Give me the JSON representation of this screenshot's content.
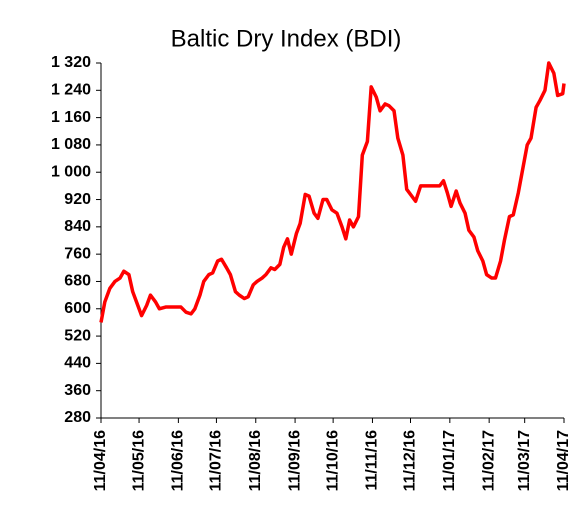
{
  "chart_data": {
    "type": "line",
    "title": "Baltic Dry Index (BDI)",
    "x": [
      "2016-04-11",
      "2016-04-14",
      "2016-04-18",
      "2016-04-22",
      "2016-04-26",
      "2016-04-29",
      "2016-05-03",
      "2016-05-06",
      "2016-05-10",
      "2016-05-13",
      "2016-05-17",
      "2016-05-20",
      "2016-05-24",
      "2016-05-27",
      "2016-06-01",
      "2016-06-07",
      "2016-06-13",
      "2016-06-17",
      "2016-06-21",
      "2016-06-24",
      "2016-06-28",
      "2016-07-01",
      "2016-07-05",
      "2016-07-08",
      "2016-07-12",
      "2016-07-15",
      "2016-07-19",
      "2016-07-22",
      "2016-07-26",
      "2016-07-29",
      "2016-08-02",
      "2016-08-05",
      "2016-08-09",
      "2016-08-12",
      "2016-08-16",
      "2016-08-19",
      "2016-08-23",
      "2016-08-26",
      "2016-08-30",
      "2016-09-02",
      "2016-09-05",
      "2016-09-08",
      "2016-09-12",
      "2016-09-15",
      "2016-09-19",
      "2016-09-22",
      "2016-09-26",
      "2016-09-29",
      "2016-10-03",
      "2016-10-06",
      "2016-10-10",
      "2016-10-14",
      "2016-10-18",
      "2016-10-21",
      "2016-10-24",
      "2016-10-27",
      "2016-10-31",
      "2016-11-03",
      "2016-11-07",
      "2016-11-10",
      "2016-11-14",
      "2016-11-17",
      "2016-11-21",
      "2016-11-24",
      "2016-11-28",
      "2016-12-01",
      "2016-12-05",
      "2016-12-08",
      "2016-12-12",
      "2016-12-15",
      "2016-12-19",
      "2016-12-22",
      "2016-12-27",
      "2017-01-03",
      "2017-01-06",
      "2017-01-09",
      "2017-01-12",
      "2017-01-16",
      "2017-01-19",
      "2017-01-23",
      "2017-01-26",
      "2017-01-30",
      "2017-02-02",
      "2017-02-06",
      "2017-02-09",
      "2017-02-13",
      "2017-02-16",
      "2017-02-20",
      "2017-02-23",
      "2017-02-27",
      "2017-03-02",
      "2017-03-06",
      "2017-03-09",
      "2017-03-13",
      "2017-03-16",
      "2017-03-20",
      "2017-03-23",
      "2017-03-27",
      "2017-03-30",
      "2017-04-03",
      "2017-04-06",
      "2017-04-10",
      "2017-04-11"
    ],
    "series": [
      {
        "color": "#ff0000",
        "values": [
          560,
          620,
          660,
          680,
          690,
          710,
          700,
          650,
          610,
          580,
          610,
          640,
          620,
          600,
          605,
          605,
          605,
          590,
          585,
          600,
          640,
          680,
          700,
          705,
          740,
          745,
          720,
          700,
          650,
          640,
          630,
          635,
          670,
          680,
          690,
          700,
          720,
          715,
          730,
          780,
          805,
          760,
          820,
          850,
          935,
          930,
          880,
          865,
          920,
          920,
          890,
          880,
          840,
          805,
          860,
          840,
          870,
          1050,
          1090,
          1250,
          1220,
          1180,
          1200,
          1195,
          1180,
          1100,
          1050,
          950,
          930,
          915,
          960,
          960,
          960,
          960,
          975,
          940,
          900,
          945,
          910,
          880,
          830,
          810,
          770,
          740,
          700,
          690,
          690,
          740,
          800,
          870,
          875,
          940,
          1000,
          1080,
          1100,
          1190,
          1210,
          1240,
          1320,
          1290,
          1225,
          1230,
          1260
        ]
      }
    ],
    "xlim": [
      "2016-04-11",
      "2017-04-11"
    ],
    "xticks": [
      {
        "value": "2016-04-11",
        "label": "11/04/16"
      },
      {
        "value": "2016-05-11",
        "label": "11/05/16"
      },
      {
        "value": "2016-06-11",
        "label": "11/06/16"
      },
      {
        "value": "2016-07-11",
        "label": "11/07/16"
      },
      {
        "value": "2016-08-11",
        "label": "11/08/16"
      },
      {
        "value": "2016-09-11",
        "label": "11/09/16"
      },
      {
        "value": "2016-10-11",
        "label": "11/10/16"
      },
      {
        "value": "2016-11-11",
        "label": "11/11/16"
      },
      {
        "value": "2016-12-11",
        "label": "11/12/16"
      },
      {
        "value": "2017-01-11",
        "label": "11/01/17"
      },
      {
        "value": "2017-02-11",
        "label": "11/02/17"
      },
      {
        "value": "2017-03-11",
        "label": "11/03/17"
      },
      {
        "value": "2017-04-11",
        "label": "11/04/17"
      }
    ],
    "ylim": [
      280,
      1320
    ],
    "yticks": [
      280,
      360,
      440,
      520,
      600,
      680,
      760,
      840,
      920,
      {
        "value": 1000,
        "label": "1 000"
      },
      {
        "value": 1080,
        "label": "1 080"
      },
      {
        "value": 1160,
        "label": "1 160"
      },
      {
        "value": 1240,
        "label": "1 240"
      },
      {
        "value": 1320,
        "label": "1 320"
      }
    ]
  }
}
